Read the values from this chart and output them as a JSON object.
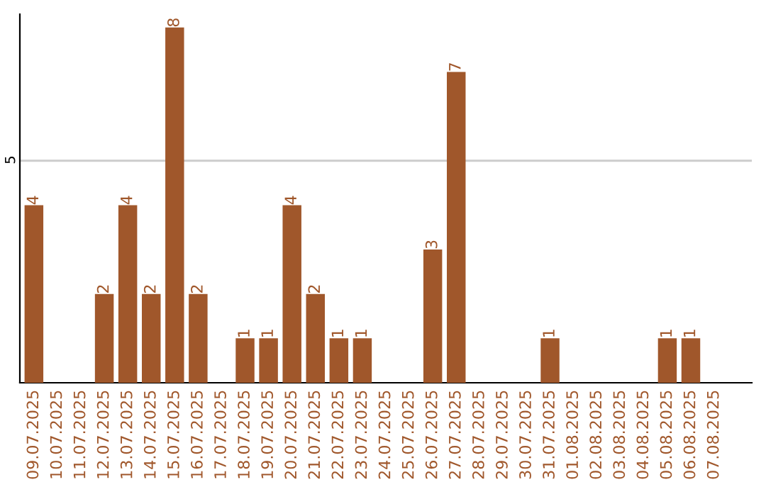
{
  "chart_data": {
    "type": "bar",
    "categories": [
      "09.07.2025",
      "10.07.2025",
      "11.07.2025",
      "12.07.2025",
      "13.07.2025",
      "14.07.2025",
      "15.07.2025",
      "16.07.2025",
      "17.07.2025",
      "18.07.2025",
      "19.07.2025",
      "20.07.2025",
      "21.07.2025",
      "22.07.2025",
      "23.07.2025",
      "24.07.2025",
      "25.07.2025",
      "26.07.2025",
      "27.07.2025",
      "28.07.2025",
      "29.07.2025",
      "30.07.2025",
      "31.07.2025",
      "01.08.2025",
      "02.08.2025",
      "03.08.2025",
      "04.08.2025",
      "05.08.2025",
      "06.08.2025",
      "07.08.2025"
    ],
    "values": [
      4,
      0,
      0,
      2,
      4,
      2,
      8,
      2,
      0,
      1,
      1,
      4,
      2,
      1,
      1,
      0,
      0,
      3,
      7,
      0,
      0,
      0,
      1,
      0,
      0,
      0,
      0,
      1,
      1,
      0
    ],
    "value_labels": [
      "4",
      null,
      null,
      "2",
      "4",
      "2",
      "8",
      "2",
      null,
      "1",
      "1",
      "4",
      "2",
      "1",
      "1",
      null,
      null,
      "3",
      "7",
      null,
      null,
      null,
      "1",
      null,
      null,
      null,
      null,
      "1",
      "1",
      null
    ],
    "color": "#a0572b",
    "ylim": [
      0,
      8.3
    ],
    "yticks": [
      5
    ],
    "grid": "y",
    "legend": false
  }
}
